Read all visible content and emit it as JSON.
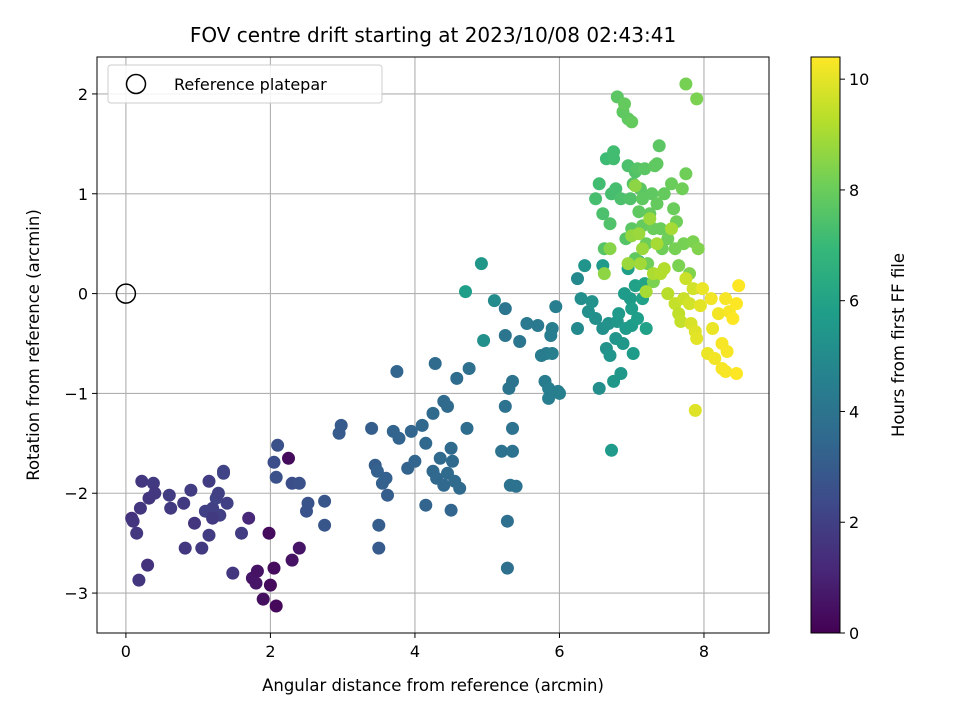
{
  "chart_data": {
    "type": "scatter",
    "title": "FOV centre drift starting at 2023/10/08 02:43:41",
    "xlabel": "Angular distance from reference (arcmin)",
    "ylabel": "Rotation from reference (arcmin)",
    "xlim": [
      -0.4,
      8.9
    ],
    "ylim": [
      -3.4,
      2.37
    ],
    "xticks": [
      0,
      2,
      4,
      6,
      8
    ],
    "yticks": [
      -3,
      -2,
      -1,
      0,
      1,
      2
    ],
    "grid": true,
    "legend": {
      "placement": "top-left",
      "entries": [
        {
          "label": "Reference platepar",
          "marker": "open-circle"
        }
      ]
    },
    "reference_point": {
      "x": 0,
      "y": 0
    },
    "colorbar": {
      "label": "Hours from first FF file",
      "range": [
        0,
        10.4
      ],
      "ticks": [
        0,
        2,
        4,
        6,
        8,
        10
      ],
      "colormap": "viridis"
    },
    "colormap_stops": [
      "#440154",
      "#482878",
      "#3e4989",
      "#31688e",
      "#26828e",
      "#1f9e89",
      "#35b779",
      "#6ece58",
      "#b5de2b",
      "#fde725"
    ],
    "points": [
      [
        0.08,
        -2.25,
        1.5
      ],
      [
        0.18,
        -2.87,
        1.6
      ],
      [
        0.15,
        -2.4,
        1.7
      ],
      [
        0.2,
        -2.15,
        1.6
      ],
      [
        0.22,
        -1.88,
        1.7
      ],
      [
        0.3,
        -2.72,
        1.5
      ],
      [
        0.32,
        -2.05,
        1.6
      ],
      [
        0.38,
        -1.9,
        1.8
      ],
      [
        0.4,
        -2.0,
        1.7
      ],
      [
        0.1,
        -2.28,
        1.6
      ],
      [
        0.6,
        -2.02,
        1.9
      ],
      [
        0.62,
        -2.15,
        1.8
      ],
      [
        0.8,
        -2.1,
        1.8
      ],
      [
        0.82,
        -2.55,
        1.7
      ],
      [
        0.9,
        -1.97,
        1.9
      ],
      [
        0.95,
        -2.3,
        1.6
      ],
      [
        1.05,
        -2.55,
        1.8
      ],
      [
        1.1,
        -2.18,
        2.0
      ],
      [
        1.15,
        -1.88,
        1.9
      ],
      [
        1.2,
        -2.15,
        2.0
      ],
      [
        1.25,
        -2.05,
        2.1
      ],
      [
        1.3,
        -2.22,
        2.0
      ],
      [
        1.35,
        -1.8,
        2.1
      ],
      [
        1.4,
        -2.1,
        2.0
      ],
      [
        1.48,
        -2.8,
        1.7
      ],
      [
        1.6,
        -2.4,
        1.9
      ],
      [
        1.7,
        -2.25,
        1.2
      ],
      [
        1.75,
        -2.85,
        0.6
      ],
      [
        1.82,
        -2.78,
        0.5
      ],
      [
        1.8,
        -2.9,
        0.6
      ],
      [
        1.9,
        -3.06,
        0.4
      ],
      [
        1.98,
        -2.4,
        0.3
      ],
      [
        2.0,
        -2.92,
        0.3
      ],
      [
        2.05,
        -2.75,
        0.3
      ],
      [
        2.08,
        -3.13,
        0.2
      ],
      [
        2.25,
        -1.65,
        0.3
      ],
      [
        2.3,
        -2.67,
        0.5
      ],
      [
        2.4,
        -2.55,
        0.6
      ],
      [
        1.15,
        -2.42,
        1.9
      ],
      [
        1.2,
        -2.25,
        1.8
      ],
      [
        1.28,
        -2.0,
        2.0
      ],
      [
        1.35,
        -1.78,
        2.1
      ],
      [
        2.05,
        -1.69,
        2.5
      ],
      [
        2.1,
        -1.52,
        2.6
      ],
      [
        2.08,
        -1.84,
        2.6
      ],
      [
        2.3,
        -1.9,
        2.5
      ],
      [
        2.4,
        -1.9,
        2.6
      ],
      [
        2.5,
        -2.18,
        2.7
      ],
      [
        2.52,
        -2.1,
        2.7
      ],
      [
        2.75,
        -2.08,
        2.8
      ],
      [
        2.75,
        -2.32,
        2.8
      ],
      [
        2.95,
        -1.4,
        3.0
      ],
      [
        2.98,
        -1.32,
        3.0
      ],
      [
        3.4,
        -1.35,
        3.1
      ],
      [
        3.45,
        -1.72,
        3.1
      ],
      [
        3.48,
        -1.78,
        3.2
      ],
      [
        3.5,
        -2.32,
        3.1
      ],
      [
        3.5,
        -2.55,
        3.0
      ],
      [
        3.55,
        -1.9,
        3.2
      ],
      [
        3.6,
        -1.85,
        3.2
      ],
      [
        3.62,
        -2.02,
        3.1
      ],
      [
        3.7,
        -1.38,
        3.3
      ],
      [
        3.75,
        -0.78,
        3.4
      ],
      [
        3.78,
        -1.45,
        3.3
      ],
      [
        3.9,
        -1.75,
        3.3
      ],
      [
        3.95,
        -1.38,
        3.4
      ],
      [
        4.0,
        -1.68,
        3.4
      ],
      [
        4.1,
        -1.32,
        3.5
      ],
      [
        4.15,
        -1.5,
        3.5
      ],
      [
        4.15,
        -2.12,
        3.3
      ],
      [
        4.25,
        -1.78,
        3.5
      ],
      [
        4.25,
        -1.2,
        3.6
      ],
      [
        4.3,
        -1.85,
        3.5
      ],
      [
        4.28,
        -0.7,
        3.6
      ],
      [
        4.35,
        -1.65,
        3.6
      ],
      [
        4.4,
        -1.08,
        3.6
      ],
      [
        4.4,
        -1.92,
        3.5
      ],
      [
        4.45,
        -1.8,
        3.6
      ],
      [
        4.45,
        -1.13,
        3.6
      ],
      [
        4.5,
        -1.55,
        3.6
      ],
      [
        4.5,
        -2.17,
        3.4
      ],
      [
        4.52,
        -1.68,
        3.6
      ],
      [
        4.55,
        -1.88,
        3.6
      ],
      [
        4.58,
        -0.85,
        3.7
      ],
      [
        4.62,
        -1.95,
        3.6
      ],
      [
        4.72,
        -1.35,
        3.7
      ],
      [
        4.75,
        -0.75,
        3.8
      ],
      [
        5.2,
        -1.58,
        3.9
      ],
      [
        5.25,
        -1.13,
        3.9
      ],
      [
        5.28,
        -2.28,
        3.8
      ],
      [
        5.28,
        -2.75,
        3.8
      ],
      [
        5.3,
        -0.95,
        4.0
      ],
      [
        5.32,
        -1.92,
        3.9
      ],
      [
        5.35,
        -1.58,
        3.9
      ],
      [
        5.35,
        -0.88,
        4.0
      ],
      [
        5.35,
        -1.35,
        3.9
      ],
      [
        5.4,
        -1.93,
        3.9
      ],
      [
        5.25,
        -0.42,
        4.1
      ],
      [
        5.25,
        -0.15,
        4.1
      ],
      [
        5.45,
        -0.48,
        4.1
      ],
      [
        5.55,
        -0.3,
        4.2
      ],
      [
        5.7,
        -0.32,
        4.2
      ],
      [
        5.75,
        -0.62,
        4.3
      ],
      [
        5.8,
        -0.88,
        4.3
      ],
      [
        5.82,
        -0.6,
        4.3
      ],
      [
        5.85,
        -0.95,
        4.4
      ],
      [
        5.85,
        -1.05,
        4.4
      ],
      [
        5.88,
        -0.42,
        4.4
      ],
      [
        5.9,
        -0.35,
        4.4
      ],
      [
        5.9,
        -0.6,
        4.5
      ],
      [
        5.95,
        -0.13,
        4.4
      ],
      [
        5.98,
        -0.98,
        4.4
      ],
      [
        4.7,
        0.02,
        5.8
      ],
      [
        4.92,
        0.3,
        5.5
      ],
      [
        4.95,
        -0.47,
        5.2
      ],
      [
        5.1,
        -0.07,
        5.0
      ],
      [
        6.0,
        -1.0,
        4.5
      ],
      [
        6.25,
        0.15,
        4.9
      ],
      [
        6.25,
        -0.35,
        4.9
      ],
      [
        6.3,
        -0.05,
        5.1
      ],
      [
        6.35,
        0.28,
        5.4
      ],
      [
        6.4,
        -0.18,
        5.2
      ],
      [
        6.45,
        -0.08,
        5.3
      ],
      [
        6.5,
        -0.25,
        5.2
      ],
      [
        6.55,
        -0.95,
        5.1
      ],
      [
        6.6,
        -0.35,
        5.2
      ],
      [
        6.6,
        0.28,
        5.6
      ],
      [
        6.65,
        -0.55,
        5.3
      ],
      [
        6.68,
        -0.3,
        5.3
      ],
      [
        6.7,
        -0.62,
        5.4
      ],
      [
        6.72,
        -1.57,
        5.6
      ],
      [
        6.75,
        -0.88,
        5.5
      ],
      [
        6.78,
        -0.45,
        5.4
      ],
      [
        6.8,
        -0.28,
        5.5
      ],
      [
        6.82,
        -0.2,
        5.6
      ],
      [
        6.85,
        -0.8,
        5.5
      ],
      [
        6.88,
        -0.5,
        5.5
      ],
      [
        6.9,
        0.0,
        5.7
      ],
      [
        6.92,
        -0.35,
        5.6
      ],
      [
        6.95,
        0.25,
        5.8
      ],
      [
        6.98,
        -0.05,
        5.7
      ],
      [
        7.0,
        -0.32,
        5.7
      ],
      [
        7.0,
        -0.15,
        5.8
      ],
      [
        7.02,
        -0.6,
        5.7
      ],
      [
        7.05,
        0.08,
        5.9
      ],
      [
        7.08,
        -0.25,
        5.8
      ],
      [
        7.1,
        0.32,
        6.0
      ],
      [
        7.15,
        -0.05,
        5.9
      ],
      [
        7.18,
        0.1,
        6.0
      ],
      [
        7.2,
        -0.35,
        5.9
      ],
      [
        6.5,
        0.95,
        7.3
      ],
      [
        6.55,
        1.1,
        7.2
      ],
      [
        6.6,
        0.8,
        7.4
      ],
      [
        6.62,
        0.45,
        7.6
      ],
      [
        6.65,
        1.35,
        7.1
      ],
      [
        6.7,
        0.7,
        7.5
      ],
      [
        6.72,
        1.0,
        7.3
      ],
      [
        6.75,
        1.42,
        7.2
      ],
      [
        6.75,
        1.35,
        7.2
      ],
      [
        6.78,
        1.05,
        7.3
      ],
      [
        6.8,
        1.97,
        7.7
      ],
      [
        6.85,
        0.95,
        7.4
      ],
      [
        6.88,
        1.82,
        7.8
      ],
      [
        6.9,
        1.9,
        7.9
      ],
      [
        6.92,
        0.55,
        7.6
      ],
      [
        6.95,
        1.28,
        7.4
      ],
      [
        6.95,
        1.75,
        7.8
      ],
      [
        6.98,
        0.95,
        7.5
      ],
      [
        7.0,
        1.72,
        7.9
      ],
      [
        7.0,
        0.65,
        7.7
      ],
      [
        7.02,
        1.1,
        7.6
      ],
      [
        7.05,
        1.22,
        7.5
      ],
      [
        7.05,
        0.35,
        7.8
      ],
      [
        7.08,
        1.25,
        7.6
      ],
      [
        7.1,
        0.82,
        7.8
      ],
      [
        7.12,
        1.05,
        7.7
      ],
      [
        7.15,
        0.68,
        7.9
      ],
      [
        7.15,
        0.95,
        7.8
      ],
      [
        7.18,
        1.25,
        7.7
      ],
      [
        7.2,
        0.5,
        8.0
      ],
      [
        7.22,
        0.3,
        8.1
      ],
      [
        7.25,
        0.8,
        7.9
      ],
      [
        7.28,
        1.0,
        7.8
      ],
      [
        7.3,
        0.12,
        8.3
      ],
      [
        7.3,
        0.65,
        8.0
      ],
      [
        7.32,
        1.28,
        7.8
      ],
      [
        7.35,
        1.3,
        7.8
      ],
      [
        7.35,
        0.9,
        7.9
      ],
      [
        7.38,
        1.48,
        7.7
      ],
      [
        7.4,
        0.65,
        8.0
      ],
      [
        7.42,
        0.45,
        8.1
      ],
      [
        7.45,
        1.0,
        7.9
      ],
      [
        7.5,
        0.55,
        8.1
      ],
      [
        7.55,
        1.1,
        8.0
      ],
      [
        7.58,
        0.85,
        8.0
      ],
      [
        7.6,
        0.45,
        8.2
      ],
      [
        7.62,
        0.72,
        8.1
      ],
      [
        7.65,
        0.28,
        8.3
      ],
      [
        7.7,
        1.05,
        8.1
      ],
      [
        7.72,
        0.5,
        8.2
      ],
      [
        7.75,
        1.2,
        8.1
      ],
      [
        7.75,
        2.1,
        8.2
      ],
      [
        7.8,
        0.2,
        8.4
      ],
      [
        7.85,
        0.52,
        8.3
      ],
      [
        7.9,
        1.95,
        8.3
      ],
      [
        7.92,
        0.45,
        8.4
      ],
      [
        6.62,
        0.2,
        8.6
      ],
      [
        6.7,
        0.45,
        8.5
      ],
      [
        6.95,
        0.3,
        8.8
      ],
      [
        7.0,
        0.58,
        8.7
      ],
      [
        7.05,
        1.08,
        8.6
      ],
      [
        7.1,
        0.6,
        8.8
      ],
      [
        7.12,
        0.3,
        8.9
      ],
      [
        7.15,
        0.45,
        8.8
      ],
      [
        7.2,
        0.02,
        9.0
      ],
      [
        7.25,
        0.75,
        8.8
      ],
      [
        7.3,
        0.2,
        9.1
      ],
      [
        7.35,
        0.5,
        9.0
      ],
      [
        7.4,
        0.2,
        9.2
      ],
      [
        7.45,
        0.25,
        9.2
      ],
      [
        7.5,
        0.0,
        9.3
      ],
      [
        7.55,
        0.65,
        9.0
      ],
      [
        7.6,
        -0.1,
        9.5
      ],
      [
        7.65,
        -0.2,
        9.4
      ],
      [
        7.68,
        -0.28,
        9.5
      ],
      [
        7.72,
        -0.05,
        9.6
      ],
      [
        7.75,
        0.15,
        9.6
      ],
      [
        7.8,
        -0.1,
        9.7
      ],
      [
        7.82,
        -0.3,
        9.8
      ],
      [
        7.85,
        0.05,
        9.7
      ],
      [
        7.88,
        -0.38,
        9.9
      ],
      [
        7.88,
        -1.17,
        9.9
      ],
      [
        7.9,
        -0.45,
        10.0
      ],
      [
        7.95,
        -0.12,
        10.0
      ],
      [
        7.98,
        0.05,
        10.1
      ],
      [
        8.05,
        -0.6,
        10.1
      ],
      [
        8.1,
        -0.05,
        10.2
      ],
      [
        8.12,
        -0.35,
        10.1
      ],
      [
        8.15,
        -0.65,
        10.2
      ],
      [
        8.2,
        -0.2,
        10.2
      ],
      [
        8.25,
        -0.5,
        10.3
      ],
      [
        8.25,
        -0.75,
        10.3
      ],
      [
        8.3,
        -0.78,
        10.3
      ],
      [
        8.3,
        -0.05,
        10.3
      ],
      [
        8.32,
        -0.58,
        10.3
      ],
      [
        8.35,
        -0.18,
        10.3
      ],
      [
        8.4,
        -0.25,
        10.4
      ],
      [
        8.45,
        -0.8,
        10.4
      ],
      [
        8.45,
        -0.1,
        10.4
      ],
      [
        8.48,
        0.08,
        10.4
      ]
    ]
  }
}
